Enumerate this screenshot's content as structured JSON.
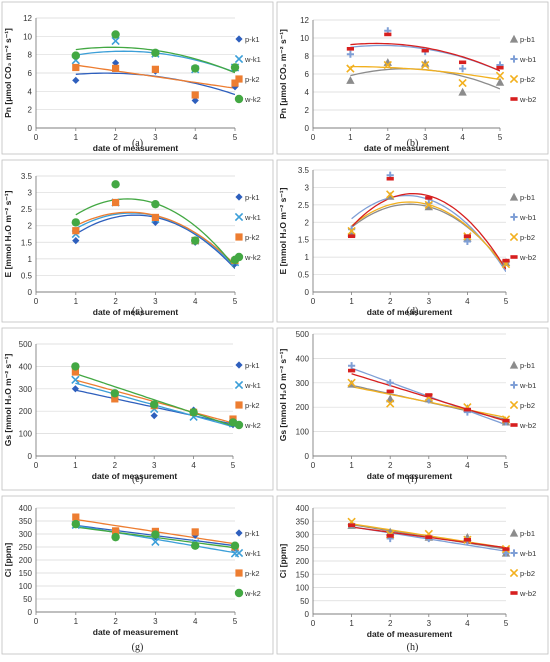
{
  "figure": {
    "background": "#ffffff",
    "panel_border": "#bfbfbf",
    "grid_color": "#d9d9d9",
    "axis_color": "#7f7f7f"
  },
  "chart_data": [
    {
      "id": "a",
      "caption": "(a)",
      "type": "scatter",
      "xlabel": "date of measurement",
      "ylabel": "Pn [μmol CO₂ m⁻² s⁻¹]",
      "xlim": [
        0,
        5
      ],
      "ylim": [
        0,
        12
      ],
      "xticks": [
        0,
        1,
        2,
        3,
        4,
        5
      ],
      "yticks": [
        0,
        2,
        4,
        6,
        8,
        10,
        12
      ],
      "grid": true,
      "legend_position": "right",
      "series": [
        {
          "name": "p-k1",
          "color": "#2e5fbd",
          "marker": "diamond",
          "x": [
            1,
            2,
            3,
            4,
            5
          ],
          "y": [
            5.2,
            7.1,
            6.2,
            3.0,
            4.5
          ],
          "trend": "poly2"
        },
        {
          "name": "w-k1",
          "color": "#3c9fd8",
          "marker": "x",
          "x": [
            1,
            2,
            3,
            4,
            5
          ],
          "y": [
            7.4,
            9.5,
            8.1,
            6.4,
            6.6
          ],
          "trend": "poly2"
        },
        {
          "name": "p-k2",
          "color": "#ed7d31",
          "marker": "square",
          "x": [
            1,
            2,
            3,
            4,
            5
          ],
          "y": [
            6.6,
            6.5,
            6.4,
            3.6,
            4.9
          ],
          "trend": "linear"
        },
        {
          "name": "w-k2",
          "color": "#43a843",
          "marker": "circle",
          "x": [
            1,
            2,
            3,
            4,
            5
          ],
          "y": [
            7.9,
            10.2,
            8.2,
            6.5,
            6.6
          ],
          "trend": "poly2"
        }
      ]
    },
    {
      "id": "b",
      "caption": "(b)",
      "type": "scatter",
      "xlabel": "date of measurement",
      "ylabel": "Pn [μmol CO₂ m⁻² s⁻¹]",
      "xlim": [
        0,
        5
      ],
      "ylim": [
        0,
        12
      ],
      "xticks": [
        0,
        1,
        2,
        3,
        4,
        5
      ],
      "yticks": [
        0,
        2,
        4,
        6,
        8,
        10,
        12
      ],
      "grid": true,
      "legend_position": "right",
      "series": [
        {
          "name": "p-b1",
          "color": "#8c8c8c",
          "marker": "triangle",
          "x": [
            1,
            2,
            3,
            4,
            5
          ],
          "y": [
            5.3,
            7.3,
            7.2,
            4.0,
            5.1
          ],
          "trend": "poly2"
        },
        {
          "name": "w-b1",
          "color": "#7f9fd6",
          "marker": "plus",
          "x": [
            1,
            2,
            3,
            4,
            5
          ],
          "y": [
            8.2,
            10.8,
            8.5,
            6.6,
            7.0
          ],
          "trend": "poly2"
        },
        {
          "name": "p-b2",
          "color": "#f2b01e",
          "marker": "x",
          "x": [
            1,
            2,
            3,
            4,
            5
          ],
          "y": [
            6.6,
            7.0,
            7.0,
            5.0,
            5.8
          ],
          "trend": "poly2"
        },
        {
          "name": "w-b2",
          "color": "#d71f1f",
          "marker": "dash",
          "x": [
            1,
            2,
            3,
            4,
            5
          ],
          "y": [
            8.8,
            10.4,
            8.6,
            7.3,
            6.7
          ],
          "trend": "poly2"
        }
      ]
    },
    {
      "id": "c",
      "caption": "(c)",
      "type": "scatter",
      "xlabel": "date of measurement",
      "ylabel": "E [mmol H₂O m⁻² s⁻¹]",
      "xlim": [
        0,
        5
      ],
      "ylim": [
        0,
        3.5
      ],
      "xticks": [
        0,
        1,
        2,
        3,
        4,
        5
      ],
      "yticks": [
        0,
        0.5,
        1,
        1.5,
        2,
        2.5,
        3,
        3.5
      ],
      "grid": true,
      "legend_position": "right",
      "series": [
        {
          "name": "p-k1",
          "color": "#2e5fbd",
          "marker": "diamond",
          "x": [
            1,
            2,
            3,
            4,
            5
          ],
          "y": [
            1.55,
            2.7,
            2.1,
            1.5,
            0.85
          ],
          "trend": "poly2"
        },
        {
          "name": "w-k1",
          "color": "#3c9fd8",
          "marker": "x",
          "x": [
            1,
            2,
            3,
            4,
            5
          ],
          "y": [
            1.75,
            2.7,
            2.2,
            1.55,
            0.9
          ],
          "trend": "poly2"
        },
        {
          "name": "p-k2",
          "color": "#ed7d31",
          "marker": "square",
          "x": [
            1,
            2,
            3,
            4,
            5
          ],
          "y": [
            1.85,
            2.7,
            2.25,
            1.55,
            0.95
          ],
          "trend": "poly2"
        },
        {
          "name": "w-k2",
          "color": "#43a843",
          "marker": "circle",
          "x": [
            1,
            2,
            3,
            4,
            5
          ],
          "y": [
            2.1,
            3.25,
            2.65,
            1.55,
            0.97
          ],
          "trend": "poly2"
        }
      ]
    },
    {
      "id": "d",
      "caption": "(d)",
      "type": "scatter",
      "xlabel": "date of measurement",
      "ylabel": "E [mmol H₂O m⁻² s⁻¹]",
      "xlim": [
        0,
        5
      ],
      "ylim": [
        0,
        3.5
      ],
      "xticks": [
        0,
        1,
        2,
        3,
        4,
        5
      ],
      "yticks": [
        0,
        0.5,
        1,
        1.5,
        2,
        2.5,
        3,
        3.5
      ],
      "grid": true,
      "legend_position": "right",
      "series": [
        {
          "name": "p-b1",
          "color": "#8c8c8c",
          "marker": "triangle",
          "x": [
            1,
            2,
            3,
            4,
            5
          ],
          "y": [
            1.7,
            2.75,
            2.45,
            1.55,
            0.85
          ],
          "trend": "poly2"
        },
        {
          "name": "w-b1",
          "color": "#7f9fd6",
          "marker": "plus",
          "x": [
            1,
            2,
            3,
            4,
            5
          ],
          "y": [
            1.8,
            3.35,
            2.55,
            1.45,
            0.85
          ],
          "trend": "poly2"
        },
        {
          "name": "p-b2",
          "color": "#f2b01e",
          "marker": "x",
          "x": [
            1,
            2,
            3,
            4,
            5
          ],
          "y": [
            1.75,
            2.8,
            2.5,
            1.6,
            0.8
          ],
          "trend": "poly2"
        },
        {
          "name": "w-b2",
          "color": "#d71f1f",
          "marker": "dash",
          "x": [
            1,
            2,
            3,
            4,
            5
          ],
          "y": [
            1.6,
            3.25,
            2.7,
            1.6,
            0.9
          ],
          "trend": "poly2"
        }
      ]
    },
    {
      "id": "e",
      "caption": "(e)",
      "type": "scatter",
      "xlabel": "date of measurement",
      "ylabel": "Gs [mmol H₂O m⁻² s⁻¹]",
      "xlim": [
        0,
        5
      ],
      "ylim": [
        0,
        500
      ],
      "xticks": [
        0,
        1,
        2,
        3,
        4,
        5
      ],
      "yticks": [
        0,
        100,
        200,
        300,
        400,
        500
      ],
      "grid": true,
      "legend_position": "right",
      "series": [
        {
          "name": "p-k1",
          "color": "#2e5fbd",
          "marker": "diamond",
          "x": [
            1,
            2,
            3,
            4,
            5
          ],
          "y": [
            300,
            265,
            180,
            205,
            140
          ],
          "trend": "linear"
        },
        {
          "name": "w-k1",
          "color": "#3c9fd8",
          "marker": "x",
          "x": [
            1,
            2,
            3,
            4,
            5
          ],
          "y": [
            340,
            270,
            210,
            175,
            145
          ],
          "trend": "linear"
        },
        {
          "name": "p-k2",
          "color": "#ed7d31",
          "marker": "square",
          "x": [
            1,
            2,
            3,
            4,
            5
          ],
          "y": [
            375,
            255,
            225,
            195,
            165
          ],
          "trend": "linear"
        },
        {
          "name": "w-k2",
          "color": "#43a843",
          "marker": "circle",
          "x": [
            1,
            2,
            3,
            4,
            5
          ],
          "y": [
            400,
            280,
            230,
            195,
            150
          ],
          "trend": "linear"
        }
      ]
    },
    {
      "id": "f",
      "caption": "(f)",
      "type": "scatter",
      "xlabel": "date of measurement",
      "ylabel": "Gs [mmol H₂O m⁻² s⁻¹]",
      "xlim": [
        0,
        5
      ],
      "ylim": [
        0,
        500
      ],
      "xticks": [
        0,
        1,
        2,
        3,
        4,
        5
      ],
      "yticks": [
        0,
        100,
        200,
        300,
        400,
        500
      ],
      "grid": true,
      "legend_position": "right",
      "series": [
        {
          "name": "p-b1",
          "color": "#8c8c8c",
          "marker": "triangle",
          "x": [
            1,
            2,
            3,
            4,
            5
          ],
          "y": [
            295,
            235,
            235,
            195,
            140
          ],
          "trend": "linear"
        },
        {
          "name": "w-b1",
          "color": "#7f9fd6",
          "marker": "plus",
          "x": [
            1,
            2,
            3,
            4,
            5
          ],
          "y": [
            370,
            300,
            230,
            180,
            140
          ],
          "trend": "linear"
        },
        {
          "name": "p-b2",
          "color": "#f2b01e",
          "marker": "x",
          "x": [
            1,
            2,
            3,
            4,
            5
          ],
          "y": [
            300,
            215,
            240,
            200,
            150
          ],
          "trend": "linear"
        },
        {
          "name": "w-b2",
          "color": "#d71f1f",
          "marker": "dash",
          "x": [
            1,
            2,
            3,
            4,
            5
          ],
          "y": [
            350,
            265,
            250,
            190,
            145
          ],
          "trend": "linear"
        }
      ]
    },
    {
      "id": "g",
      "caption": "(g)",
      "type": "scatter",
      "xlabel": "date of measurement",
      "ylabel": "Ci [ppm]",
      "xlim": [
        0,
        5
      ],
      "ylim": [
        0,
        400
      ],
      "xticks": [
        0,
        1,
        2,
        3,
        4,
        5
      ],
      "yticks": [
        0,
        50,
        100,
        150,
        200,
        250,
        300,
        350,
        400
      ],
      "grid": true,
      "legend_position": "right",
      "series": [
        {
          "name": "p-k1",
          "color": "#2e5fbd",
          "marker": "diamond",
          "x": [
            1,
            2,
            3,
            4,
            5
          ],
          "y": [
            340,
            300,
            290,
            295,
            245
          ],
          "trend": "linear"
        },
        {
          "name": "w-k1",
          "color": "#3c9fd8",
          "marker": "x",
          "x": [
            1,
            2,
            3,
            4,
            5
          ],
          "y": [
            335,
            305,
            270,
            265,
            225
          ],
          "trend": "linear"
        },
        {
          "name": "p-k2",
          "color": "#ed7d31",
          "marker": "square",
          "x": [
            1,
            2,
            3,
            4,
            5
          ],
          "y": [
            365,
            312,
            310,
            308,
            250
          ],
          "trend": "linear"
        },
        {
          "name": "w-k2",
          "color": "#43a843",
          "marker": "circle",
          "x": [
            1,
            2,
            3,
            4,
            5
          ],
          "y": [
            338,
            288,
            298,
            255,
            255
          ],
          "trend": "linear"
        }
      ]
    },
    {
      "id": "h",
      "caption": "(h)",
      "type": "scatter",
      "xlabel": "date of measurement",
      "ylabel": "Ci [ppm]",
      "xlim": [
        0,
        5
      ],
      "ylim": [
        0,
        400
      ],
      "xticks": [
        0,
        1,
        2,
        3,
        4,
        5
      ],
      "yticks": [
        0,
        50,
        100,
        150,
        200,
        250,
        300,
        350,
        400
      ],
      "grid": true,
      "legend_position": "right",
      "series": [
        {
          "name": "p-b1",
          "color": "#8c8c8c",
          "marker": "triangle",
          "x": [
            1,
            2,
            3,
            4,
            5
          ],
          "y": [
            335,
            310,
            290,
            290,
            230
          ],
          "trend": "linear"
        },
        {
          "name": "w-b1",
          "color": "#7f9fd6",
          "marker": "plus",
          "x": [
            1,
            2,
            3,
            4,
            5
          ],
          "y": [
            340,
            285,
            285,
            275,
            230
          ],
          "trend": "linear"
        },
        {
          "name": "p-b2",
          "color": "#f2b01e",
          "marker": "x",
          "x": [
            1,
            2,
            3,
            4,
            5
          ],
          "y": [
            348,
            300,
            302,
            280,
            245
          ],
          "trend": "linear"
        },
        {
          "name": "w-b2",
          "color": "#d71f1f",
          "marker": "dash",
          "x": [
            1,
            2,
            3,
            4,
            5
          ],
          "y": [
            335,
            295,
            290,
            280,
            245
          ],
          "trend": "linear"
        }
      ]
    }
  ]
}
